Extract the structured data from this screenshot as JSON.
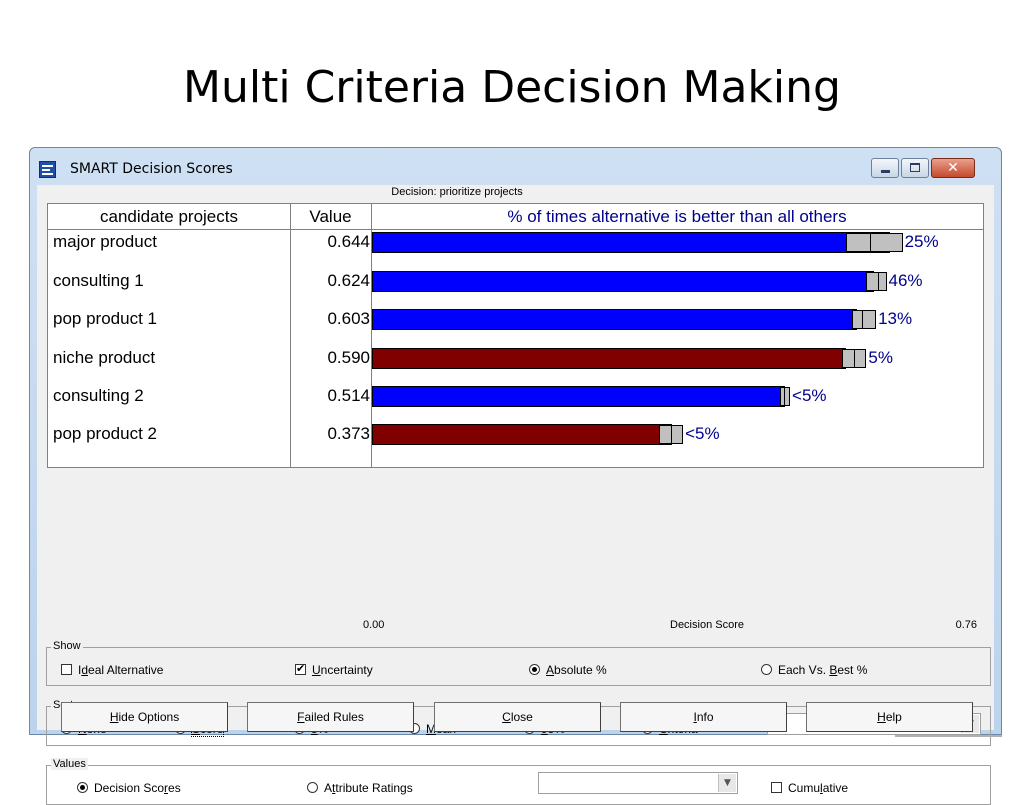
{
  "slide_title": "Multi Criteria Decision Making",
  "window": {
    "title": "SMART  Decision Scores",
    "decision_caption": "Decision: prioritize projects"
  },
  "table": {
    "headers": {
      "name": "candidate projects",
      "value": "Value",
      "bars": "% of times alternative is better than all others"
    },
    "rows": [
      {
        "name": "major product",
        "value": "0.644",
        "score": 0.644,
        "color": "#0000ff",
        "low": 0.59,
        "mid": 0.62,
        "high": 0.66,
        "pct": "25%"
      },
      {
        "name": "consulting 1",
        "value": "0.624",
        "score": 0.624,
        "color": "#0000ff",
        "low": 0.615,
        "mid": 0.63,
        "high": 0.64,
        "pct": "46%"
      },
      {
        "name": "pop product 1",
        "value": "0.603",
        "score": 0.603,
        "color": "#0000ff",
        "low": 0.597,
        "mid": 0.61,
        "high": 0.627,
        "pct": "13%"
      },
      {
        "name": "niche product",
        "value": "0.590",
        "score": 0.59,
        "color": "#800000",
        "low": 0.585,
        "mid": 0.6,
        "high": 0.615,
        "pct": "5%"
      },
      {
        "name": "consulting 2",
        "value": "0.514",
        "score": 0.514,
        "color": "#0000ff",
        "low": 0.507,
        "mid": 0.513,
        "high": 0.52,
        "pct": "<5%"
      },
      {
        "name": "pop product 2",
        "value": "0.373",
        "score": 0.373,
        "color": "#800000",
        "low": 0.357,
        "mid": 0.372,
        "high": 0.387,
        "pct": "<5%"
      }
    ]
  },
  "axis": {
    "min_label": "0.00",
    "max_label": "0.76",
    "title": "Decision Score",
    "min": 0,
    "max": 0.76
  },
  "show": {
    "legend": "Show",
    "ideal": {
      "pre": "I",
      "u": "d",
      "post": "eal Alternative",
      "checked": false
    },
    "uncertainty": {
      "pre": "",
      "u": "U",
      "post": "ncertainty",
      "checked": true
    },
    "absolute": {
      "pre": "",
      "u": "A",
      "post": "bsolute %",
      "checked": true
    },
    "each_vs_best": {
      "pre": "Each Vs. ",
      "u": "B",
      "post": "est %",
      "checked": false
    }
  },
  "sort": {
    "legend": "Sort",
    "options": [
      {
        "pre": "",
        "u": "N",
        "post": "one",
        "checked": false
      },
      {
        "pre": "",
        "u": "S",
        "post": "core",
        "checked": true
      },
      {
        "pre": "",
        "u": "5",
        "post": "%",
        "checked": false
      },
      {
        "pre": "",
        "u": "M",
        "post": "ean",
        "checked": false
      },
      {
        "pre": "",
        "u": "9",
        "post": "5%",
        "checked": false
      },
      {
        "pre": "",
        "u": "C",
        "post": "riteria",
        "checked": false
      }
    ],
    "combo_value": ""
  },
  "values": {
    "legend": "Values",
    "decision_scores": {
      "pre": "Decision Sco",
      "u": "r",
      "post": "es",
      "checked": true
    },
    "attribute_ratings": {
      "pre": "A",
      "u": "t",
      "post": "tribute Ratings",
      "checked": false
    },
    "combo_value": "",
    "cumulative": {
      "pre": "Cumu",
      "u": "l",
      "post": "ative",
      "checked": false
    }
  },
  "buttons": [
    {
      "pre": "",
      "u": "H",
      "post": "ide Options"
    },
    {
      "pre": "",
      "u": "F",
      "post": "ailed Rules"
    },
    {
      "pre": "",
      "u": "C",
      "post": "lose"
    },
    {
      "pre": "",
      "u": "I",
      "post": "nfo"
    },
    {
      "pre": "",
      "u": "H",
      "post": "elp"
    }
  ]
}
